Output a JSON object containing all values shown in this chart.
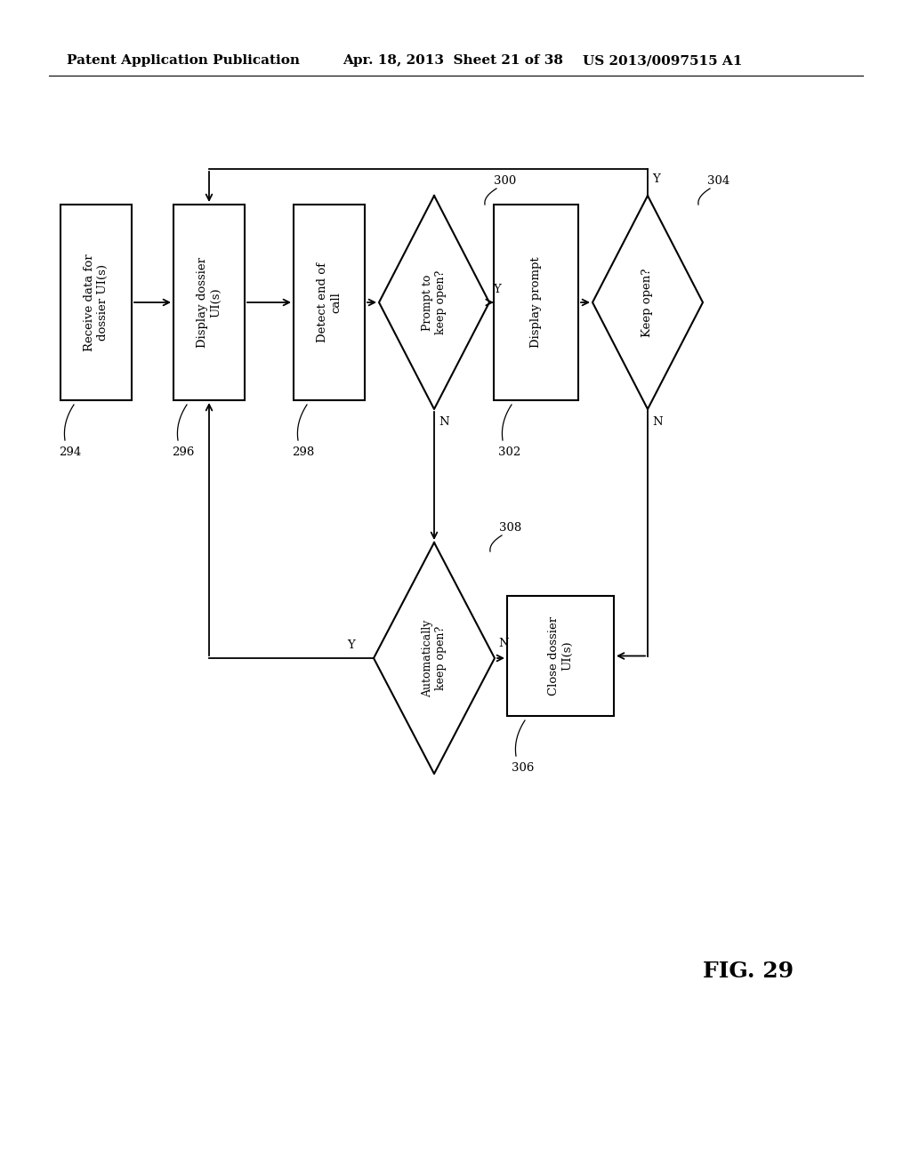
{
  "bg_color": "#ffffff",
  "header_left": "Patent Application Publication",
  "header_mid": "Apr. 18, 2013  Sheet 21 of 38",
  "header_right": "US 2013/0097515 A1",
  "fig_label": "FIG. 29"
}
